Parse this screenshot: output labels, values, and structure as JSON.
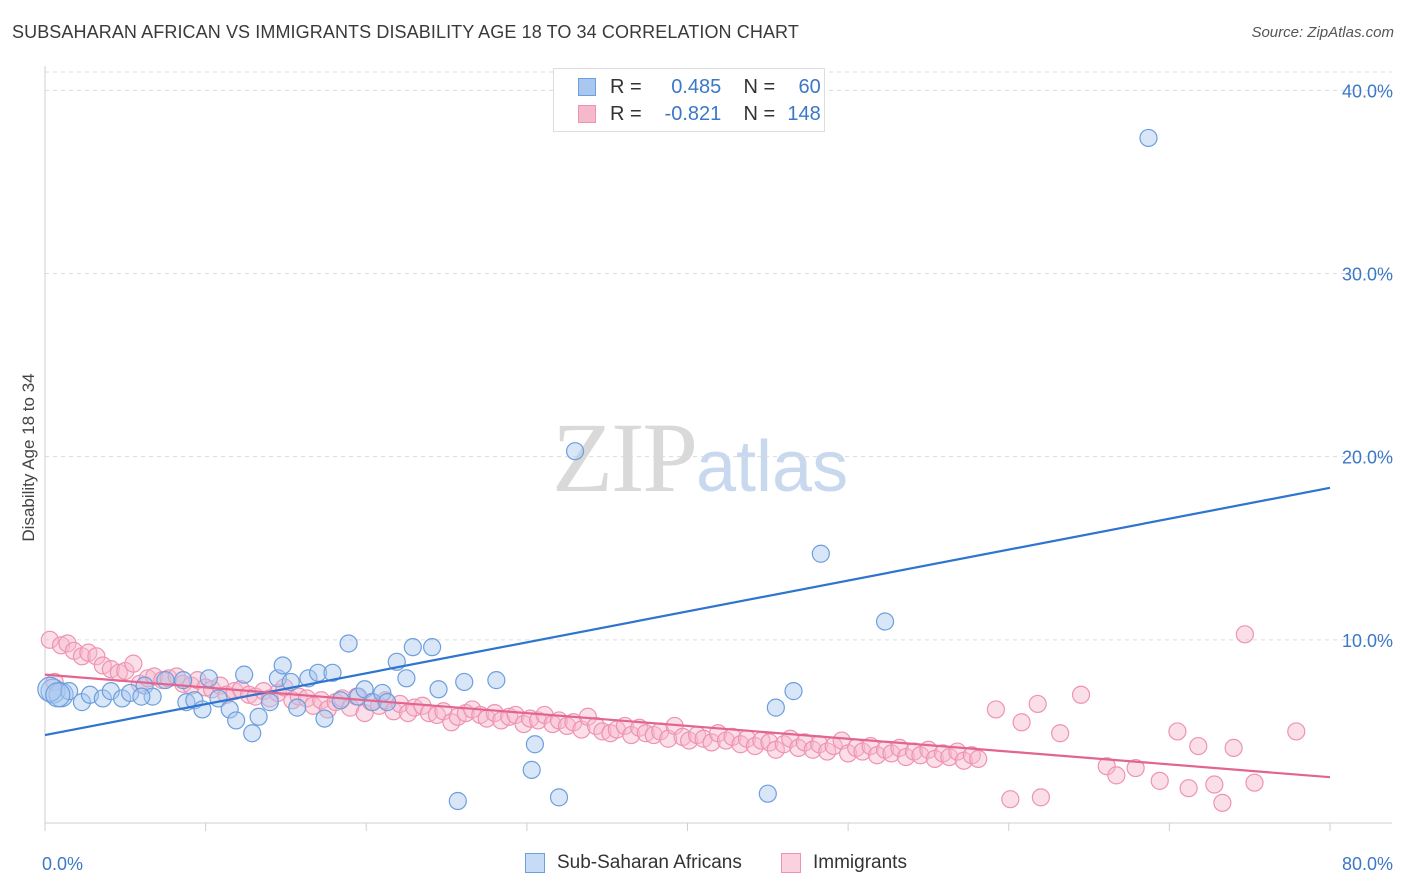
{
  "header": {
    "title": "SUBSAHARAN AFRICAN VS IMMIGRANTS DISABILITY AGE 18 TO 34 CORRELATION CHART",
    "source": "Source: ZipAtlas.com"
  },
  "legend": {
    "series1": {
      "r_label": "R =",
      "r_value": "0.485",
      "n_label": "N =",
      "n_value": "60"
    },
    "series2": {
      "r_label": "R =",
      "r_value": "-0.821",
      "n_label": "N =",
      "n_value": "148"
    }
  },
  "bottom_legend": {
    "series1": "Sub-Saharan Africans",
    "series2": "Immigrants"
  },
  "watermark": {
    "zip": "ZIP",
    "atlas": "atlas"
  },
  "colors": {
    "blue_fill": "#a9c8f0",
    "blue_stroke": "#6d9fdc",
    "blue_line": "#2e74d0",
    "pink_fill": "#f6b8cb",
    "pink_stroke": "#ee93b2",
    "pink_line": "#e2648f",
    "tick_label": "#3b78c7"
  },
  "chart_data": {
    "type": "scatter",
    "title": "SUBSAHARAN AFRICAN VS IMMIGRANTS DISABILITY AGE 18 TO 34 CORRELATION CHART",
    "xlabel": "",
    "ylabel": "Disability Age 18 to 34",
    "xlim": [
      0,
      80
    ],
    "ylim": [
      0,
      41
    ],
    "x_tick_labels": [
      "0.0%",
      "80.0%"
    ],
    "y_ticks": [
      10,
      20,
      30,
      40
    ],
    "y_tick_labels": [
      "10.0%",
      "20.0%",
      "30.0%",
      "40.0%"
    ],
    "grid": true,
    "legend_position": "top-center",
    "series": [
      {
        "name": "Sub-Saharan Africans",
        "color": "#6d9fdc",
        "trend": {
          "x": [
            0,
            80
          ],
          "y": [
            4.8,
            18.3
          ]
        },
        "points": [
          [
            0.5,
            7.2
          ],
          [
            1.0,
            7.0
          ],
          [
            1.5,
            7.2
          ],
          [
            2.3,
            6.6
          ],
          [
            2.8,
            7.0
          ],
          [
            3.6,
            6.8
          ],
          [
            4.1,
            7.2
          ],
          [
            4.8,
            6.8
          ],
          [
            5.3,
            7.1
          ],
          [
            6.2,
            7.5
          ],
          [
            6.7,
            6.9
          ],
          [
            7.5,
            7.8
          ],
          [
            8.6,
            7.8
          ],
          [
            8.8,
            6.6
          ],
          [
            9.3,
            6.7
          ],
          [
            9.8,
            6.2
          ],
          [
            10.2,
            7.9
          ],
          [
            10.8,
            6.8
          ],
          [
            11.5,
            6.2
          ],
          [
            11.9,
            5.6
          ],
          [
            12.4,
            8.1
          ],
          [
            12.9,
            4.9
          ],
          [
            13.3,
            5.8
          ],
          [
            14.0,
            6.6
          ],
          [
            14.5,
            7.9
          ],
          [
            14.8,
            8.6
          ],
          [
            15.3,
            7.7
          ],
          [
            15.7,
            6.3
          ],
          [
            16.4,
            7.9
          ],
          [
            17.0,
            8.2
          ],
          [
            17.4,
            5.7
          ],
          [
            17.9,
            8.2
          ],
          [
            18.4,
            6.7
          ],
          [
            18.9,
            9.8
          ],
          [
            19.5,
            6.9
          ],
          [
            19.9,
            7.3
          ],
          [
            20.4,
            6.6
          ],
          [
            21.0,
            7.1
          ],
          [
            21.3,
            6.6
          ],
          [
            21.9,
            8.8
          ],
          [
            22.5,
            7.9
          ],
          [
            22.9,
            9.6
          ],
          [
            24.1,
            9.6
          ],
          [
            24.5,
            7.3
          ],
          [
            26.1,
            7.7
          ],
          [
            28.1,
            7.8
          ],
          [
            30.5,
            4.3
          ],
          [
            30.3,
            2.9
          ],
          [
            32.0,
            1.4
          ],
          [
            33.0,
            20.3
          ],
          [
            45.5,
            6.3
          ],
          [
            46.6,
            7.2
          ],
          [
            45.0,
            1.6
          ],
          [
            25.7,
            1.2
          ],
          [
            48.3,
            14.7
          ],
          [
            52.3,
            11.0
          ],
          [
            68.7,
            37.4
          ],
          [
            0.3,
            7.3
          ],
          [
            0.8,
            7.0
          ],
          [
            6.0,
            6.9
          ]
        ]
      },
      {
        "name": "Immigrants",
        "color": "#ee93b2",
        "trend": {
          "x": [
            0,
            80
          ],
          "y": [
            8.1,
            2.5
          ]
        },
        "points": [
          [
            0.3,
            10.0
          ],
          [
            0.6,
            7.7
          ],
          [
            1.0,
            9.7
          ],
          [
            1.4,
            9.8
          ],
          [
            1.8,
            9.4
          ],
          [
            2.3,
            9.1
          ],
          [
            2.7,
            9.3
          ],
          [
            3.2,
            9.1
          ],
          [
            3.6,
            8.6
          ],
          [
            4.1,
            8.4
          ],
          [
            4.6,
            8.2
          ],
          [
            5.0,
            8.3
          ],
          [
            5.5,
            8.7
          ],
          [
            5.9,
            7.6
          ],
          [
            6.4,
            7.9
          ],
          [
            6.8,
            8.0
          ],
          [
            7.3,
            7.8
          ],
          [
            7.7,
            7.9
          ],
          [
            8.2,
            8.0
          ],
          [
            8.6,
            7.6
          ],
          [
            9.1,
            7.5
          ],
          [
            9.5,
            7.8
          ],
          [
            10.0,
            7.4
          ],
          [
            10.4,
            7.3
          ],
          [
            10.9,
            7.5
          ],
          [
            11.3,
            7.0
          ],
          [
            11.8,
            7.2
          ],
          [
            12.2,
            7.3
          ],
          [
            12.7,
            7.0
          ],
          [
            13.1,
            6.9
          ],
          [
            13.6,
            7.2
          ],
          [
            14.0,
            6.8
          ],
          [
            14.5,
            7.1
          ],
          [
            14.9,
            7.4
          ],
          [
            15.4,
            6.7
          ],
          [
            15.8,
            6.9
          ],
          [
            16.3,
            6.8
          ],
          [
            16.7,
            6.4
          ],
          [
            17.2,
            6.7
          ],
          [
            17.6,
            6.2
          ],
          [
            18.1,
            6.6
          ],
          [
            18.5,
            6.8
          ],
          [
            19.0,
            6.3
          ],
          [
            19.4,
            6.9
          ],
          [
            19.9,
            6.0
          ],
          [
            20.3,
            6.6
          ],
          [
            20.8,
            6.4
          ],
          [
            21.2,
            6.7
          ],
          [
            21.7,
            6.1
          ],
          [
            22.1,
            6.5
          ],
          [
            22.6,
            6.0
          ],
          [
            23.0,
            6.3
          ],
          [
            23.5,
            6.4
          ],
          [
            23.9,
            6.0
          ],
          [
            24.4,
            5.9
          ],
          [
            24.8,
            6.1
          ],
          [
            25.3,
            5.5
          ],
          [
            25.7,
            5.8
          ],
          [
            26.2,
            6.0
          ],
          [
            26.6,
            6.2
          ],
          [
            27.1,
            5.9
          ],
          [
            27.5,
            5.7
          ],
          [
            28.0,
            6.0
          ],
          [
            28.4,
            5.6
          ],
          [
            28.9,
            5.8
          ],
          [
            29.3,
            5.9
          ],
          [
            29.8,
            5.4
          ],
          [
            30.2,
            5.7
          ],
          [
            30.7,
            5.6
          ],
          [
            31.1,
            5.9
          ],
          [
            31.6,
            5.4
          ],
          [
            32.0,
            5.6
          ],
          [
            32.5,
            5.3
          ],
          [
            32.9,
            5.5
          ],
          [
            33.4,
            5.1
          ],
          [
            33.8,
            5.8
          ],
          [
            34.3,
            5.3
          ],
          [
            34.7,
            5.0
          ],
          [
            35.2,
            4.9
          ],
          [
            35.6,
            5.1
          ],
          [
            36.1,
            5.3
          ],
          [
            36.5,
            4.8
          ],
          [
            37.0,
            5.2
          ],
          [
            37.4,
            4.9
          ],
          [
            37.9,
            4.8
          ],
          [
            38.3,
            5.0
          ],
          [
            38.8,
            4.6
          ],
          [
            39.2,
            5.3
          ],
          [
            39.7,
            4.7
          ],
          [
            40.1,
            4.5
          ],
          [
            40.6,
            4.8
          ],
          [
            41.0,
            4.6
          ],
          [
            41.5,
            4.4
          ],
          [
            41.9,
            4.9
          ],
          [
            42.4,
            4.5
          ],
          [
            42.8,
            4.7
          ],
          [
            43.3,
            4.3
          ],
          [
            43.7,
            4.6
          ],
          [
            44.2,
            4.2
          ],
          [
            44.6,
            4.5
          ],
          [
            45.1,
            4.4
          ],
          [
            45.5,
            4.0
          ],
          [
            46.0,
            4.3
          ],
          [
            46.4,
            4.6
          ],
          [
            46.9,
            4.1
          ],
          [
            47.3,
            4.4
          ],
          [
            47.8,
            4.0
          ],
          [
            48.2,
            4.3
          ],
          [
            48.7,
            3.9
          ],
          [
            49.1,
            4.2
          ],
          [
            49.6,
            4.5
          ],
          [
            50.0,
            3.8
          ],
          [
            50.5,
            4.1
          ],
          [
            50.9,
            3.9
          ],
          [
            51.4,
            4.2
          ],
          [
            51.8,
            3.7
          ],
          [
            52.3,
            4.0
          ],
          [
            52.7,
            3.8
          ],
          [
            53.2,
            4.1
          ],
          [
            53.6,
            3.6
          ],
          [
            54.1,
            3.9
          ],
          [
            54.5,
            3.7
          ],
          [
            55.0,
            4.0
          ],
          [
            55.4,
            3.5
          ],
          [
            55.9,
            3.8
          ],
          [
            56.3,
            3.6
          ],
          [
            56.8,
            3.9
          ],
          [
            57.2,
            3.4
          ],
          [
            57.7,
            3.7
          ],
          [
            58.1,
            3.5
          ],
          [
            59.2,
            6.2
          ],
          [
            60.8,
            5.5
          ],
          [
            61.8,
            6.5
          ],
          [
            64.5,
            7.0
          ],
          [
            63.2,
            4.9
          ],
          [
            66.1,
            3.1
          ],
          [
            66.7,
            2.6
          ],
          [
            69.4,
            2.3
          ],
          [
            70.5,
            5.0
          ],
          [
            71.2,
            1.9
          ],
          [
            71.8,
            4.2
          ],
          [
            73.3,
            1.1
          ],
          [
            74.7,
            10.3
          ],
          [
            75.3,
            2.2
          ],
          [
            77.9,
            5.0
          ],
          [
            62.0,
            1.4
          ],
          [
            60.1,
            1.3
          ],
          [
            72.8,
            2.1
          ],
          [
            74.0,
            4.1
          ],
          [
            67.9,
            3.0
          ]
        ]
      }
    ]
  }
}
